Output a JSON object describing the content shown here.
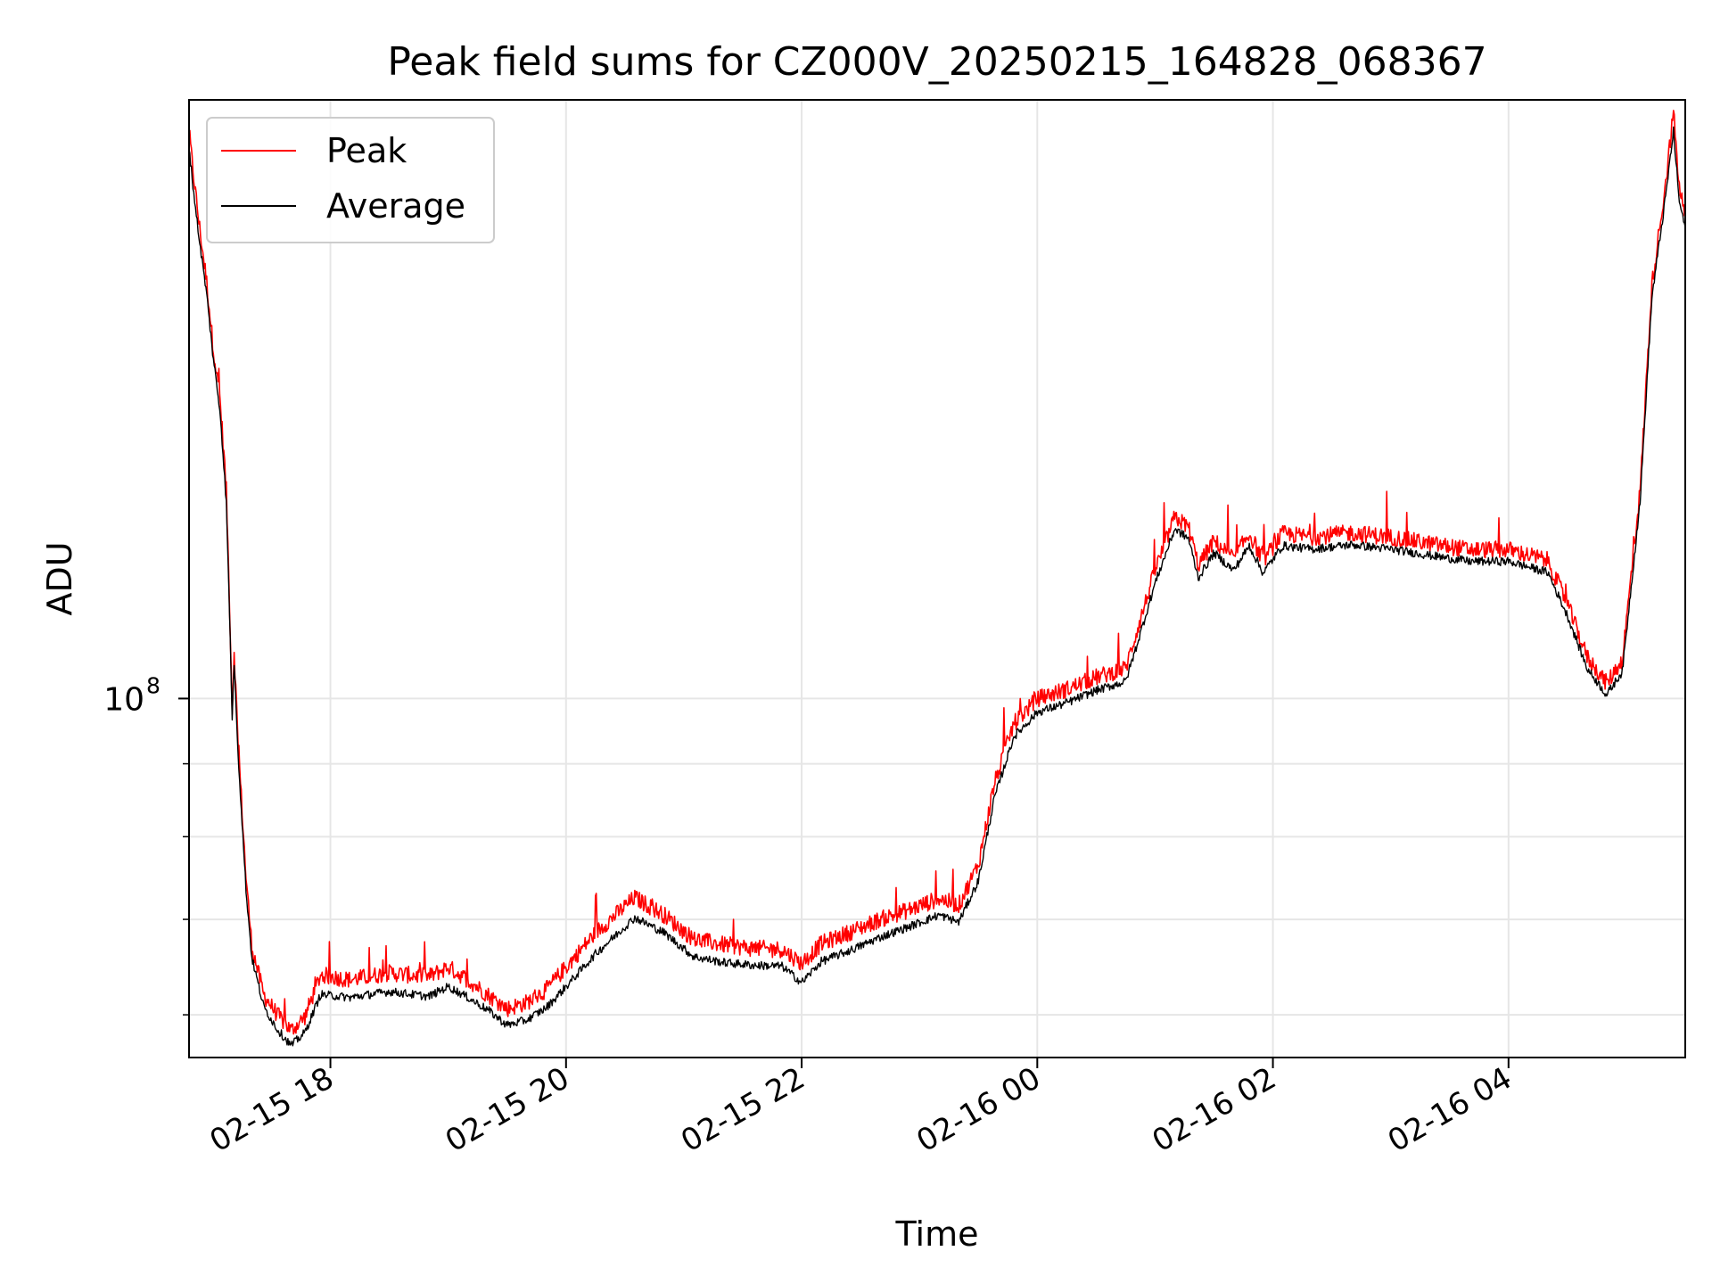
{
  "chart_data": {
    "type": "line",
    "title": "Peak field sums for CZ000V_20250215_164828_068367",
    "xlabel": "Time",
    "ylabel": "ADU",
    "yscale": "log",
    "xlim": [
      "2025-02-15 16:48",
      "2025-02-16 05:30"
    ],
    "ylim": [
      56000000,
      263000000
    ],
    "x_ticks": [
      "02-15 18",
      "02-15 20",
      "02-15 22",
      "02-16 00",
      "02-16 02",
      "02-16 04"
    ],
    "x_tick_times": [
      "2025-02-15 18:00",
      "2025-02-15 20:00",
      "2025-02-15 22:00",
      "2025-02-16 00:00",
      "2025-02-16 02:00",
      "2025-02-16 04:00"
    ],
    "y_major_ticks": [
      {
        "value": 100000000,
        "base": "10",
        "exp": "8"
      }
    ],
    "y_minor_ticks": [
      60000000,
      70000000,
      80000000,
      90000000
    ],
    "grid": true,
    "legend_position": "upper-left",
    "series": [
      {
        "name": "Peak",
        "color": "#ff0000",
        "points": [
          [
            "2025-02-15 16:48",
            250000000
          ],
          [
            "2025-02-15 16:50",
            235000000
          ],
          [
            "2025-02-15 16:53",
            216000000
          ],
          [
            "2025-02-15 16:57",
            196000000
          ],
          [
            "2025-02-15 17:00",
            178000000
          ],
          [
            "2025-02-15 17:04",
            161000000
          ],
          [
            "2025-02-15 17:07",
            140000000
          ],
          [
            "2025-02-15 17:09",
            112000000
          ],
          [
            "2025-02-15 17:10",
            98000000
          ],
          [
            "2025-02-15 17:11",
            108000000
          ],
          [
            "2025-02-15 17:13",
            93000000
          ],
          [
            "2025-02-15 17:17",
            75000000
          ],
          [
            "2025-02-15 17:20",
            67000000
          ],
          [
            "2025-02-15 17:26",
            62000000
          ],
          [
            "2025-02-15 17:33",
            60000000
          ],
          [
            "2025-02-15 17:40",
            58500000
          ],
          [
            "2025-02-15 17:47",
            59800000
          ],
          [
            "2025-02-15 17:55",
            64000000
          ],
          [
            "2025-02-15 18:10",
            63500000
          ],
          [
            "2025-02-15 18:30",
            64200000
          ],
          [
            "2025-02-15 18:50",
            63800000
          ],
          [
            "2025-02-15 19:00",
            64800000
          ],
          [
            "2025-02-15 19:10",
            63500000
          ],
          [
            "2025-02-15 19:20",
            62000000
          ],
          [
            "2025-02-15 19:30",
            60600000
          ],
          [
            "2025-02-15 19:40",
            61200000
          ],
          [
            "2025-02-15 19:50",
            62500000
          ],
          [
            "2025-02-15 20:00",
            64800000
          ],
          [
            "2025-02-15 20:15",
            68500000
          ],
          [
            "2025-02-15 20:35",
            72500000
          ],
          [
            "2025-02-15 20:50",
            70500000
          ],
          [
            "2025-02-15 21:05",
            67800000
          ],
          [
            "2025-02-15 21:20",
            67200000
          ],
          [
            "2025-02-15 21:35",
            66800000
          ],
          [
            "2025-02-15 21:50",
            66700000
          ],
          [
            "2025-02-15 22:00",
            65200000
          ],
          [
            "2025-02-15 22:10",
            67300000
          ],
          [
            "2025-02-15 22:25",
            68600000
          ],
          [
            "2025-02-15 22:40",
            70000000
          ],
          [
            "2025-02-15 22:55",
            71100000
          ],
          [
            "2025-02-15 23:10",
            72400000
          ],
          [
            "2025-02-15 23:20",
            71600000
          ],
          [
            "2025-02-15 23:30",
            76500000
          ],
          [
            "2025-02-15 23:38",
            87000000
          ],
          [
            "2025-02-15 23:48",
            96000000
          ],
          [
            "2025-02-16 00:00",
            100000000
          ],
          [
            "2025-02-16 00:15",
            101500000
          ],
          [
            "2025-02-16 00:30",
            103500000
          ],
          [
            "2025-02-16 00:45",
            105000000
          ],
          [
            "2025-02-16 00:52",
            113000000
          ],
          [
            "2025-02-16 01:00",
            123000000
          ],
          [
            "2025-02-16 01:10",
            134000000
          ],
          [
            "2025-02-16 01:17",
            132000000
          ],
          [
            "2025-02-16 01:22",
            124000000
          ],
          [
            "2025-02-16 01:30",
            129000000
          ],
          [
            "2025-02-16 01:40",
            125500000
          ],
          [
            "2025-02-16 01:48",
            130500000
          ],
          [
            "2025-02-16 01:55",
            125000000
          ],
          [
            "2025-02-16 02:05",
            130500000
          ],
          [
            "2025-02-16 02:20",
            129800000
          ],
          [
            "2025-02-16 02:40",
            130700000
          ],
          [
            "2025-02-16 03:00",
            129800000
          ],
          [
            "2025-02-16 03:20",
            128400000
          ],
          [
            "2025-02-16 03:40",
            127200000
          ],
          [
            "2025-02-16 04:00",
            127200000
          ],
          [
            "2025-02-16 04:20",
            125000000
          ],
          [
            "2025-02-16 04:30",
            116500000
          ],
          [
            "2025-02-16 04:40",
            107000000
          ],
          [
            "2025-02-16 04:50",
            102500000
          ],
          [
            "2025-02-16 04:58",
            106500000
          ],
          [
            "2025-02-16 05:07",
            140000000
          ],
          [
            "2025-02-16 05:13",
            195000000
          ],
          [
            "2025-02-16 05:20",
            230000000
          ],
          [
            "2025-02-16 05:24",
            258000000
          ],
          [
            "2025-02-16 05:27",
            228000000
          ],
          [
            "2025-02-16 05:30",
            218000000
          ]
        ]
      },
      {
        "name": "Average",
        "color": "#000000",
        "points": [
          [
            "2025-02-15 16:48",
            244000000
          ],
          [
            "2025-02-15 16:50",
            229000000
          ],
          [
            "2025-02-15 16:53",
            211000000
          ],
          [
            "2025-02-15 16:57",
            192000000
          ],
          [
            "2025-02-15 17:00",
            175000000
          ],
          [
            "2025-02-15 17:04",
            158000000
          ],
          [
            "2025-02-15 17:07",
            137000000
          ],
          [
            "2025-02-15 17:09",
            110000000
          ],
          [
            "2025-02-15 17:10",
            97000000
          ],
          [
            "2025-02-15 17:11",
            106000000
          ],
          [
            "2025-02-15 17:13",
            91500000
          ],
          [
            "2025-02-15 17:17",
            73500000
          ],
          [
            "2025-02-15 17:20",
            65800000
          ],
          [
            "2025-02-15 17:26",
            60800000
          ],
          [
            "2025-02-15 17:33",
            58600000
          ],
          [
            "2025-02-15 17:40",
            57100000
          ],
          [
            "2025-02-15 17:47",
            58300000
          ],
          [
            "2025-02-15 17:55",
            62000000
          ],
          [
            "2025-02-15 18:10",
            61700000
          ],
          [
            "2025-02-15 18:30",
            62300000
          ],
          [
            "2025-02-15 18:50",
            61800000
          ],
          [
            "2025-02-15 19:00",
            62800000
          ],
          [
            "2025-02-15 19:10",
            61700000
          ],
          [
            "2025-02-15 19:20",
            60500000
          ],
          [
            "2025-02-15 19:30",
            59000000
          ],
          [
            "2025-02-15 19:40",
            59500000
          ],
          [
            "2025-02-15 19:50",
            60700000
          ],
          [
            "2025-02-15 20:00",
            62800000
          ],
          [
            "2025-02-15 20:15",
            66200000
          ],
          [
            "2025-02-15 20:35",
            70200000
          ],
          [
            "2025-02-15 20:50",
            68500000
          ],
          [
            "2025-02-15 21:05",
            65900000
          ],
          [
            "2025-02-15 21:20",
            65300000
          ],
          [
            "2025-02-15 21:35",
            65000000
          ],
          [
            "2025-02-15 21:50",
            64900000
          ],
          [
            "2025-02-15 22:00",
            63200000
          ],
          [
            "2025-02-15 22:10",
            65400000
          ],
          [
            "2025-02-15 22:25",
            66600000
          ],
          [
            "2025-02-15 22:40",
            68000000
          ],
          [
            "2025-02-15 22:55",
            69200000
          ],
          [
            "2025-02-15 23:10",
            70500000
          ],
          [
            "2025-02-15 23:20",
            69700000
          ],
          [
            "2025-02-15 23:30",
            74500000
          ],
          [
            "2025-02-15 23:38",
            85000000
          ],
          [
            "2025-02-15 23:48",
            94000000
          ],
          [
            "2025-02-16 00:00",
            97800000
          ],
          [
            "2025-02-16 00:15",
            99300000
          ],
          [
            "2025-02-16 00:30",
            101300000
          ],
          [
            "2025-02-16 00:45",
            102800000
          ],
          [
            "2025-02-16 00:52",
            110500000
          ],
          [
            "2025-02-16 01:00",
            120500000
          ],
          [
            "2025-02-16 01:10",
            131500000
          ],
          [
            "2025-02-16 01:17",
            129500000
          ],
          [
            "2025-02-16 01:22",
            121500000
          ],
          [
            "2025-02-16 01:30",
            126500000
          ],
          [
            "2025-02-16 01:40",
            123000000
          ],
          [
            "2025-02-16 01:48",
            128000000
          ],
          [
            "2025-02-16 01:55",
            122500000
          ],
          [
            "2025-02-16 02:05",
            128000000
          ],
          [
            "2025-02-16 02:20",
            127300000
          ],
          [
            "2025-02-16 02:40",
            128200000
          ],
          [
            "2025-02-16 03:00",
            127300000
          ],
          [
            "2025-02-16 03:20",
            126000000
          ],
          [
            "2025-02-16 03:40",
            124800000
          ],
          [
            "2025-02-16 04:00",
            124800000
          ],
          [
            "2025-02-16 04:20",
            122600000
          ],
          [
            "2025-02-16 04:30",
            114300000
          ],
          [
            "2025-02-16 04:40",
            105000000
          ],
          [
            "2025-02-16 04:50",
            100600000
          ],
          [
            "2025-02-16 04:58",
            104500000
          ],
          [
            "2025-02-16 05:07",
            137500000
          ],
          [
            "2025-02-16 05:13",
            191000000
          ],
          [
            "2025-02-16 05:20",
            225000000
          ],
          [
            "2025-02-16 05:24",
            250000000
          ],
          [
            "2025-02-16 05:27",
            223000000
          ],
          [
            "2025-02-16 05:30",
            214000000
          ]
        ]
      }
    ]
  }
}
